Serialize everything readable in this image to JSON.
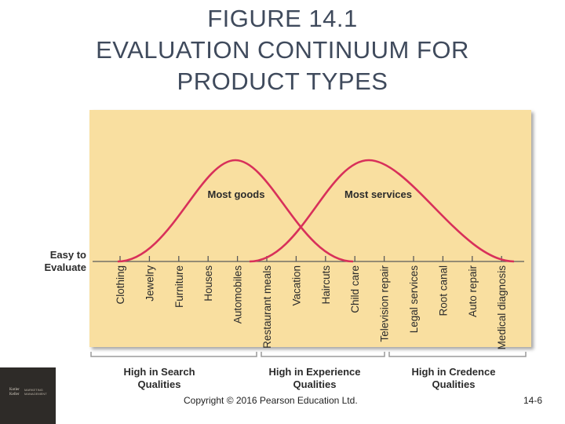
{
  "title": {
    "line1": "FIGURE 14.1",
    "line2": "EVALUATION CONTINUUM FOR",
    "line3": "PRODUCT TYPES"
  },
  "diagram": {
    "side_label_line1": "Easy to",
    "side_label_line2": "Evaluate",
    "curve_labels": [
      "Most goods",
      "Most services"
    ],
    "products": [
      "Clothing",
      "Jewelry",
      "Furniture",
      "Houses",
      "Automobiles",
      "Restaurant meals",
      "Vacation",
      "Haircuts",
      "Child care",
      "Television repair",
      "Legal services",
      "Root canal",
      "Auto repair",
      "Medical diagnosis"
    ],
    "qualities": [
      {
        "line1": "High in Search",
        "line2": "Qualities"
      },
      {
        "line1": "High in Experience",
        "line2": "Qualities"
      },
      {
        "line1": "High in Credence",
        "line2": "Qualities"
      }
    ],
    "colors": {
      "panel": "#f9dfa0",
      "curve": "#d8305a",
      "axis": "#5a5a5a",
      "title": "#3f4a5c"
    }
  },
  "book": {
    "line1": "Kotler",
    "line2": "Keller",
    "line3": "MARKETING",
    "line4": "MANAGEMENT"
  },
  "footer": {
    "copyright": "Copyright © 2016 Pearson Education Ltd.",
    "page": "14-6"
  }
}
